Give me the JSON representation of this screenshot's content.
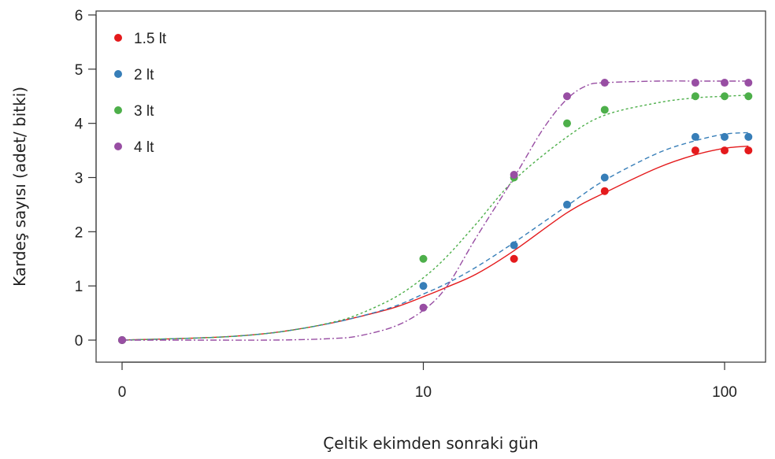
{
  "chart_data": {
    "type": "line",
    "title": "",
    "xlabel": "Çeltik ekimden sonraki gün",
    "ylabel": "Kardeş sayısı (adet/ bitki)",
    "x_scale": "log",
    "x_ticks": [
      {
        "value": 0,
        "label": "0"
      },
      {
        "value": 10,
        "label": "10"
      },
      {
        "value": 100,
        "label": "100"
      }
    ],
    "y_ticks": [
      {
        "value": 0,
        "label": "0"
      },
      {
        "value": 1,
        "label": "1"
      },
      {
        "value": 2,
        "label": "2"
      },
      {
        "value": 3,
        "label": "3"
      },
      {
        "value": 4,
        "label": "4"
      },
      {
        "value": 5,
        "label": "5"
      },
      {
        "value": 6,
        "label": "6"
      }
    ],
    "ylim": [
      0,
      6
    ],
    "grid": false,
    "legend_position": "top-left",
    "x": [
      1,
      10,
      20,
      30,
      40,
      80,
      100,
      120
    ],
    "series": [
      {
        "name": "1.5 lt",
        "color": "#e41a1c",
        "dash": "solid",
        "values": [
          0,
          null,
          1.5,
          null,
          2.75,
          3.5,
          3.5,
          3.5
        ],
        "fit_x": [
          1,
          2,
          3,
          4,
          5,
          6,
          8,
          10,
          12,
          15,
          20,
          30,
          40,
          60,
          80,
          100,
          120
        ],
        "fit_y": [
          0.0,
          0.05,
          0.12,
          0.22,
          0.32,
          0.42,
          0.6,
          0.8,
          0.98,
          1.22,
          1.65,
          2.35,
          2.72,
          3.18,
          3.42,
          3.54,
          3.58
        ]
      },
      {
        "name": "2 lt",
        "color": "#377eb8",
        "dash": "6,4",
        "values": [
          0,
          1.0,
          1.75,
          2.5,
          3.0,
          3.75,
          3.75,
          3.75
        ],
        "fit_x": [
          1,
          2,
          3,
          4,
          5,
          6,
          8,
          10,
          12,
          15,
          20,
          30,
          40,
          60,
          80,
          100,
          120
        ],
        "fit_y": [
          0.0,
          0.05,
          0.12,
          0.22,
          0.32,
          0.42,
          0.62,
          0.85,
          1.05,
          1.35,
          1.8,
          2.48,
          2.95,
          3.45,
          3.68,
          3.8,
          3.83
        ]
      },
      {
        "name": "3 lt",
        "color": "#4daf4a",
        "dash": "3,3",
        "values": [
          0,
          1.5,
          3.0,
          4.0,
          4.25,
          4.5,
          4.5,
          4.5
        ],
        "fit_x": [
          1,
          2,
          3,
          4,
          5,
          6,
          8,
          10,
          12,
          15,
          20,
          30,
          40,
          60,
          80,
          100,
          120
        ],
        "fit_y": [
          0.0,
          0.05,
          0.12,
          0.22,
          0.33,
          0.46,
          0.78,
          1.15,
          1.55,
          2.15,
          2.95,
          3.75,
          4.15,
          4.38,
          4.47,
          4.5,
          4.52
        ]
      },
      {
        "name": "4 lt",
        "color": "#984ea3",
        "dash": "8,3,2,3",
        "values": [
          0,
          0.6,
          3.05,
          4.5,
          4.75,
          4.75,
          4.75,
          4.75
        ],
        "fit_x": [
          1,
          2,
          3,
          4,
          5,
          6,
          8,
          10,
          12,
          15,
          20,
          25,
          30,
          35,
          40,
          60,
          80,
          100,
          120
        ],
        "fit_y": [
          0.0,
          0.0,
          0.0,
          0.01,
          0.03,
          0.07,
          0.25,
          0.55,
          1.0,
          1.9,
          3.0,
          3.9,
          4.45,
          4.7,
          4.75,
          4.78,
          4.78,
          4.78,
          4.78
        ]
      }
    ]
  }
}
